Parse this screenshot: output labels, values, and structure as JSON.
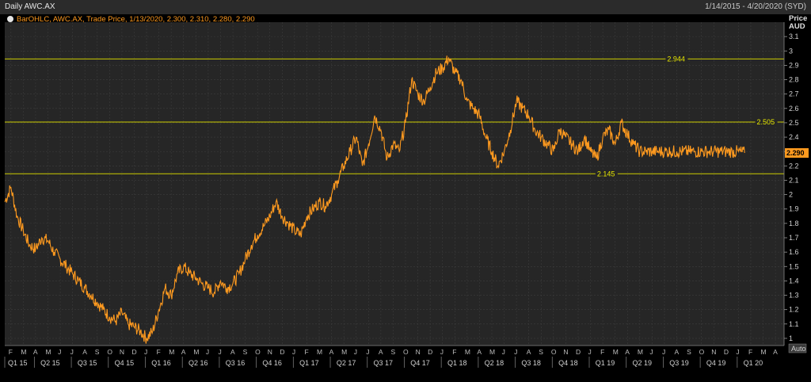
{
  "window": {
    "title": "Daily AWC.AX",
    "date_range": "1/14/2015 - 4/20/2020 (SYD)"
  },
  "legend": {
    "text": "BarOHLC, AWC.AX, Trade Price,  1/13/2020, 2.300, 2.310, 2.280, 2.290"
  },
  "controls": {
    "auto_label": "Auto"
  },
  "chart_data": {
    "type": "line",
    "ylabel": "Price\nAUD",
    "ylim": [
      0.95,
      3.2
    ],
    "y_ticks": [
      1,
      1.1,
      1.2,
      1.3,
      1.4,
      1.5,
      1.6,
      1.7,
      1.8,
      1.9,
      2,
      2.1,
      2.2,
      2.3,
      2.4,
      2.5,
      2.6,
      2.7,
      2.8,
      2.9,
      3,
      3.1
    ],
    "y_tick_labels": [
      "1",
      "1.1",
      "1.2",
      "1.3",
      "1.4",
      "1.5",
      "1.6",
      "1.7",
      "1.8",
      "1.9",
      "2",
      "2.1",
      "2.2",
      "2.3",
      "2.4",
      "2.5",
      "2.6",
      "2.7",
      "2.8",
      "2.9",
      "3",
      "3.1"
    ],
    "last_price_label": "2.290",
    "last_price": 2.29,
    "horizontal_lines": [
      {
        "value": 2.944,
        "label": "2.944"
      },
      {
        "value": 2.505,
        "label": "2.505"
      },
      {
        "value": 2.145,
        "label": "2.145"
      }
    ],
    "month_ticks": [
      "F",
      "M",
      "A",
      "M",
      "J",
      "J",
      "A",
      "S",
      "O",
      "N",
      "D",
      "J",
      "F",
      "M",
      "A",
      "M",
      "J",
      "J",
      "A",
      "S",
      "O",
      "N",
      "D",
      "J",
      "F",
      "M",
      "A",
      "M",
      "J",
      "J",
      "A",
      "S",
      "O",
      "N",
      "D",
      "J",
      "F",
      "M",
      "A",
      "M",
      "J",
      "J",
      "A",
      "S",
      "O",
      "N",
      "D",
      "J",
      "F",
      "M",
      "A",
      "M",
      "J",
      "J",
      "A",
      "S",
      "O",
      "N",
      "D",
      "J",
      "F",
      "M",
      "A"
    ],
    "quarter_labels": [
      "Q1 15",
      "Q2 15",
      "Q3 15",
      "Q4 15",
      "Q1 16",
      "Q2 16",
      "Q3 16",
      "Q4 16",
      "Q1 17",
      "Q2 17",
      "Q3 17",
      "Q4 17",
      "Q1 18",
      "Q2 18",
      "Q3 18",
      "Q4 18",
      "Q1 19",
      "Q2 19",
      "Q3 19",
      "Q4 19",
      "Q1 20"
    ],
    "x_range_months": [
      0,
      63.2
    ],
    "series": [
      {
        "color": "#ff9a1f",
        "x_months": [
          0,
          0.5,
          1,
          1.5,
          2,
          2.5,
          3,
          3.5,
          4,
          4.5,
          5,
          5.5,
          6,
          6.5,
          7,
          7.5,
          8,
          8.5,
          9,
          9.5,
          10,
          10.5,
          11,
          11.5,
          12,
          12.5,
          13,
          13.5,
          14,
          14.5,
          15,
          15.5,
          16,
          16.5,
          17,
          17.5,
          18,
          18.5,
          19,
          19.5,
          20,
          20.5,
          21,
          21.5,
          22,
          22.5,
          23,
          23.5,
          24,
          24.5,
          25,
          25.5,
          26,
          26.5,
          27,
          27.5,
          28,
          28.5,
          29,
          29.5,
          30,
          30.5,
          31,
          31.5,
          32,
          32.5,
          33,
          33.5,
          34,
          34.5,
          35,
          35.5,
          36,
          36.5,
          37,
          37.5,
          38,
          38.5,
          39,
          39.5,
          40,
          40.5,
          41,
          41.5,
          42,
          42.5,
          43,
          43.5,
          44,
          44.5,
          45,
          45.5,
          46,
          46.5,
          47,
          47.5,
          48,
          48.5,
          49,
          49.5,
          50,
          50.5,
          51,
          51.5,
          52,
          52.5,
          53,
          53.5,
          54,
          54.5,
          55,
          55.5,
          56,
          56.5,
          57,
          57.5,
          58,
          58.5,
          59,
          59.5,
          60
        ],
        "y": [
          1.95,
          2.05,
          1.85,
          1.75,
          1.65,
          1.62,
          1.7,
          1.68,
          1.6,
          1.55,
          1.5,
          1.45,
          1.4,
          1.35,
          1.3,
          1.25,
          1.2,
          1.15,
          1.12,
          1.18,
          1.1,
          1.08,
          1.05,
          1.0,
          1.05,
          1.2,
          1.35,
          1.3,
          1.45,
          1.5,
          1.45,
          1.42,
          1.38,
          1.35,
          1.32,
          1.4,
          1.35,
          1.38,
          1.45,
          1.55,
          1.65,
          1.72,
          1.78,
          1.85,
          1.95,
          1.85,
          1.8,
          1.75,
          1.72,
          1.85,
          1.9,
          1.95,
          1.92,
          2.0,
          2.1,
          2.2,
          2.3,
          2.4,
          2.2,
          2.35,
          2.55,
          2.45,
          2.25,
          2.35,
          2.3,
          2.5,
          2.8,
          2.7,
          2.65,
          2.75,
          2.85,
          2.88,
          2.95,
          2.85,
          2.8,
          2.65,
          2.6,
          2.55,
          2.4,
          2.3,
          2.2,
          2.3,
          2.45,
          2.65,
          2.6,
          2.55,
          2.45,
          2.4,
          2.35,
          2.3,
          2.45,
          2.4,
          2.35,
          2.3,
          2.4,
          2.3,
          2.25,
          2.4,
          2.45,
          2.35,
          2.5,
          2.42,
          2.35,
          2.3,
          2.3,
          2.3,
          2.3,
          2.3,
          2.3,
          2.3,
          2.3,
          2.3,
          2.3,
          2.3,
          2.3,
          2.3,
          2.3,
          2.3,
          2.3,
          2.3,
          2.29
        ]
      }
    ]
  }
}
